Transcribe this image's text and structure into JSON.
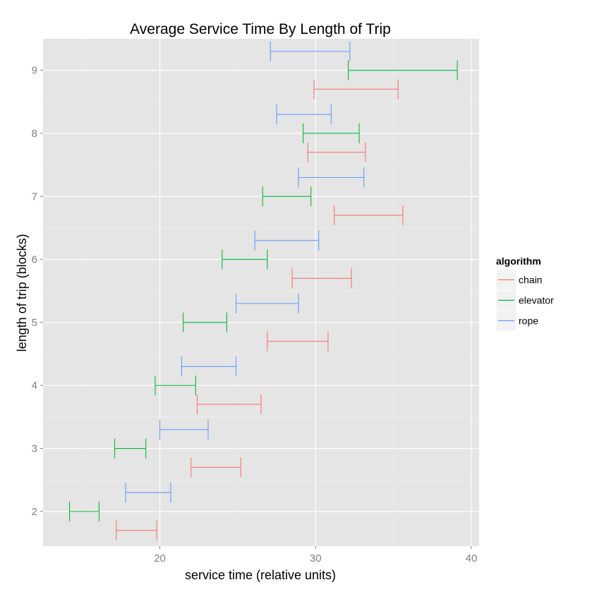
{
  "chart_data": {
    "type": "errorbar",
    "title": "Average Service Time By Length of Trip",
    "xlabel": "service time (relative units)",
    "ylabel": "length of trip (blocks)",
    "xlim": [
      12.5,
      40.5
    ],
    "ylim": [
      1.45,
      9.5
    ],
    "xticks": [
      20,
      30,
      40
    ],
    "yticks": [
      2,
      3,
      4,
      5,
      6,
      7,
      8,
      9
    ],
    "grid": true,
    "legend": {
      "title": "algorithm",
      "position": "right"
    },
    "series": [
      {
        "name": "chain",
        "color": "#F8766D",
        "y": [
          2,
          3,
          4,
          5,
          6,
          7,
          8,
          9
        ],
        "xmin": [
          17.2,
          22.0,
          22.4,
          26.9,
          28.5,
          31.2,
          29.5,
          29.9
        ],
        "xmax": [
          19.8,
          25.2,
          26.5,
          30.8,
          32.3,
          35.6,
          33.2,
          35.3
        ]
      },
      {
        "name": "elevator",
        "color": "#00BA38",
        "y": [
          2,
          3,
          4,
          5,
          6,
          7,
          8,
          9
        ],
        "xmin": [
          14.2,
          17.1,
          19.7,
          21.5,
          24.0,
          26.6,
          29.2,
          32.1
        ],
        "xmax": [
          16.1,
          19.1,
          22.3,
          24.3,
          26.9,
          29.7,
          32.8,
          39.1
        ]
      },
      {
        "name": "rope",
        "color": "#619CFF",
        "y": [
          2,
          3,
          4,
          5,
          6,
          7,
          8,
          9
        ],
        "xmin": [
          17.8,
          20.0,
          21.4,
          24.9,
          26.1,
          28.9,
          27.5,
          27.1
        ],
        "xmax": [
          20.7,
          23.1,
          24.9,
          28.9,
          30.2,
          33.1,
          31.0,
          32.2
        ]
      }
    ]
  }
}
